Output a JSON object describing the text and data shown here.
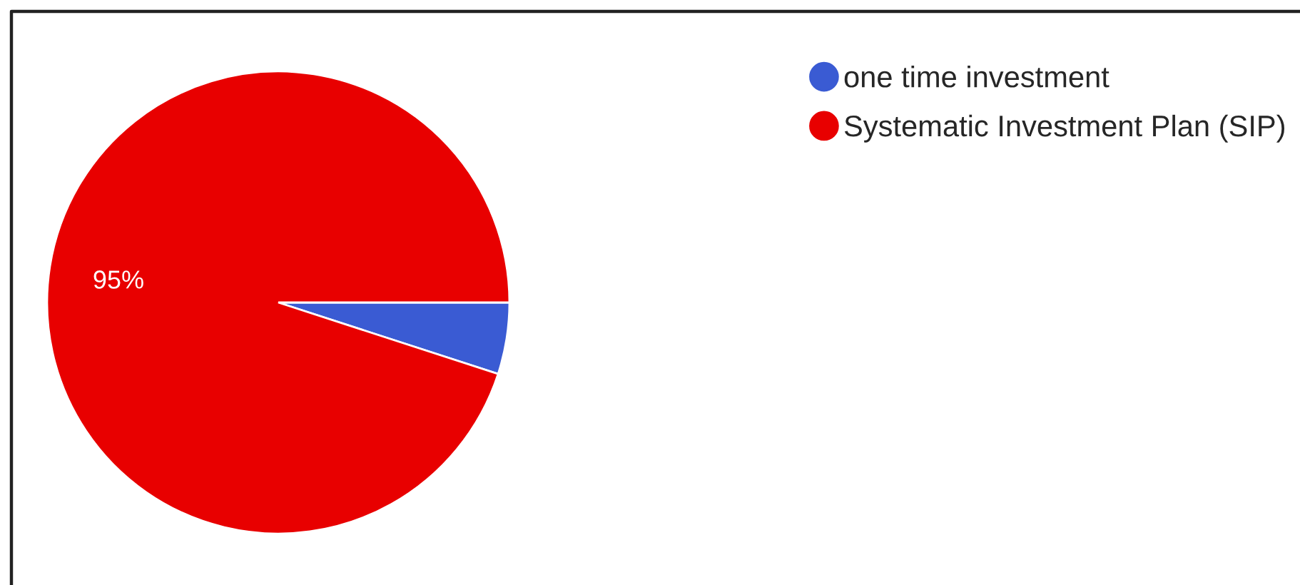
{
  "chart_data": {
    "type": "pie",
    "categories": [
      "one time investment",
      "Systematic Investment Plan (SIP)"
    ],
    "values": [
      5,
      95
    ],
    "colors": [
      "#3a5bd3",
      "#e80000"
    ],
    "value_labels": [
      null,
      "95%"
    ],
    "legend": "top right"
  }
}
